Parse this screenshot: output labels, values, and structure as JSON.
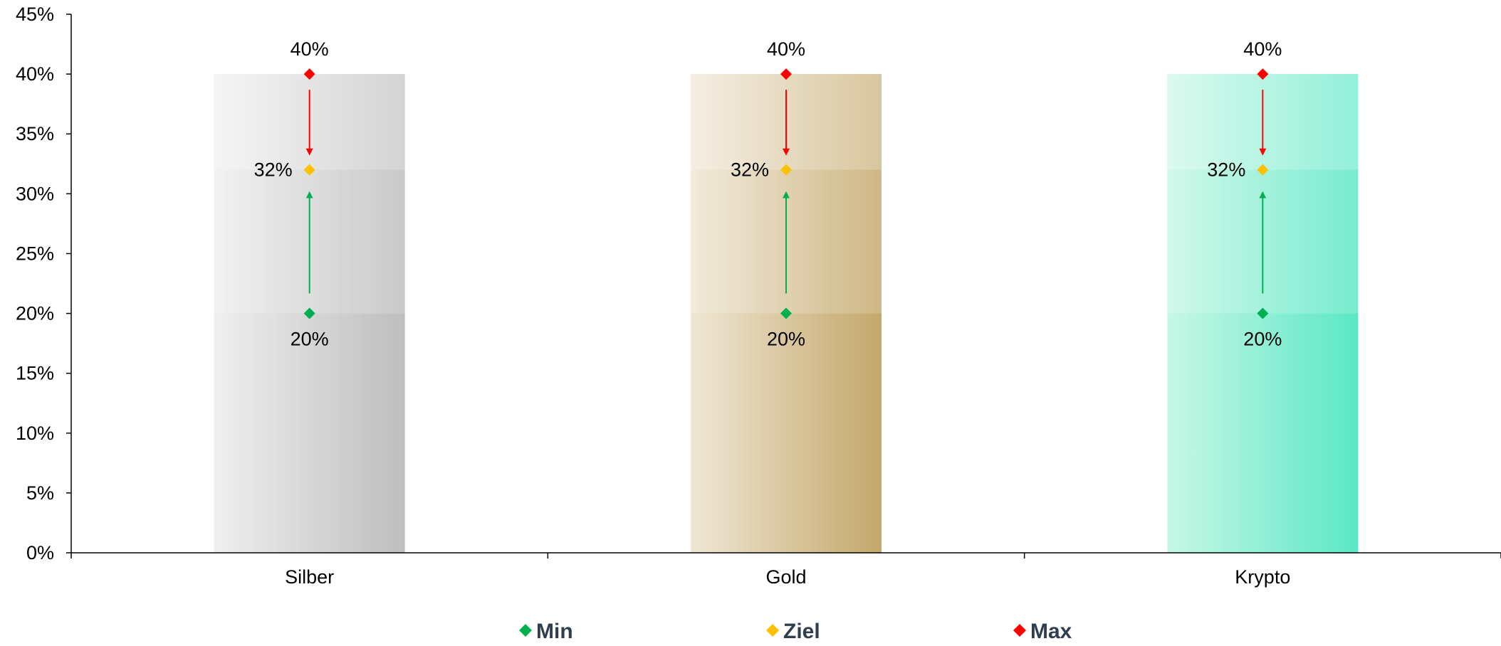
{
  "colors": {
    "min": "#00B050",
    "target": "#FFC000",
    "max": "#FF0000",
    "legend_text": "#2F3E4E",
    "axis": "#000000"
  },
  "chart_data": {
    "type": "bar",
    "title": "",
    "xlabel": "",
    "ylabel": "",
    "categories": [
      "Silber",
      "Gold",
      "Krypto"
    ],
    "ylim": [
      0,
      45
    ],
    "yticks": [
      0,
      5,
      10,
      15,
      20,
      25,
      30,
      35,
      40,
      45
    ],
    "ytick_labels": [
      "0%",
      "5%",
      "10%",
      "15%",
      "20%",
      "25%",
      "30%",
      "35%",
      "40%",
      "45%"
    ],
    "grid": false,
    "series": [
      {
        "name": "Min",
        "values": [
          20,
          20,
          20
        ],
        "labels": [
          "20%",
          "20%",
          "20%"
        ]
      },
      {
        "name": "Ziel",
        "values": [
          32,
          32,
          32
        ],
        "labels": [
          "32%",
          "32%",
          "32%"
        ]
      },
      {
        "name": "Max",
        "values": [
          40,
          40,
          40
        ],
        "labels": [
          "40%",
          "40%",
          "40%"
        ]
      }
    ],
    "bar_colors": [
      {
        "light": "#EFEFEF",
        "dark": "#BEBEBE"
      },
      {
        "light": "#EFE6D4",
        "dark": "#C4A86A"
      },
      {
        "light": "#C8F7E6",
        "dark": "#5AE8C4"
      }
    ],
    "legend": {
      "position": "bottom",
      "entries": [
        "Min",
        "Ziel",
        "Max"
      ]
    }
  }
}
